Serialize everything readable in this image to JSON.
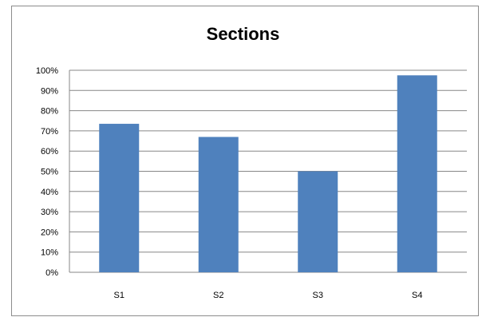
{
  "chart_data": {
    "type": "bar",
    "title": "Sections",
    "categories": [
      "S1",
      "S2",
      "S3",
      "S4"
    ],
    "values": [
      0.735,
      0.67,
      0.5,
      0.975
    ],
    "ylim": [
      0,
      1
    ],
    "yticks": [
      "0%",
      "10%",
      "20%",
      "30%",
      "40%",
      "50%",
      "60%",
      "70%",
      "80%",
      "90%",
      "100%"
    ],
    "xlabel": "",
    "ylabel": "",
    "grid": true,
    "legend": "none",
    "bar_color": "#4f81bd",
    "gridline_color": "#878787"
  }
}
